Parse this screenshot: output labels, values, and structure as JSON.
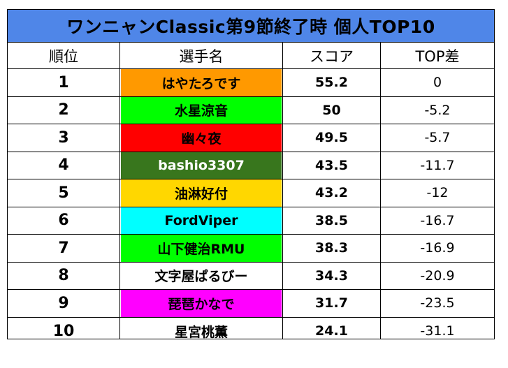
{
  "title": "ワンニャンClassic第9節終了時 個人TOP10",
  "headers": {
    "rank": "順位",
    "name": "選手名",
    "score": "スコア",
    "diff": "TOP差"
  },
  "rows": [
    {
      "rank": "1",
      "name": "はやたろです",
      "score": "55.2",
      "diff": "0",
      "color": "#ff9900",
      "text_color": "#000000"
    },
    {
      "rank": "2",
      "name": "水星涼音",
      "score": "50",
      "diff": "-5.2",
      "color": "#00ff00",
      "text_color": "#000000"
    },
    {
      "rank": "3",
      "name": "幽々夜",
      "score": "49.5",
      "diff": "-5.7",
      "color": "#ff0000",
      "text_color": "#000000"
    },
    {
      "rank": "4",
      "name": "bashio3307",
      "score": "43.5",
      "diff": "-11.7",
      "color": "#38761d",
      "text_color": "#ffffff"
    },
    {
      "rank": "5",
      "name": "油淋好付",
      "score": "43.2",
      "diff": "-12",
      "color": "#ffd700",
      "text_color": "#000000"
    },
    {
      "rank": "6",
      "name": "FordViper",
      "score": "38.5",
      "diff": "-16.7",
      "color": "#00ffff",
      "text_color": "#000000"
    },
    {
      "rank": "7",
      "name": "山下健治RMU",
      "score": "38.3",
      "diff": "-16.9",
      "color": "#00ff00",
      "text_color": "#000000"
    },
    {
      "rank": "8",
      "name": "文字屋ぱるびー",
      "score": "34.3",
      "diff": "-20.9",
      "color": "#ffffff",
      "text_color": "#000000"
    },
    {
      "rank": "9",
      "name": "琵琶かなで",
      "score": "31.7",
      "diff": "-23.5",
      "color": "#ff00ff",
      "text_color": "#000000"
    },
    {
      "rank": "10",
      "name": "星宮桃薫",
      "score": "24.1",
      "diff": "-31.1",
      "color": "#ffffff",
      "text_color": "#000000"
    }
  ],
  "colors": {
    "title_bg": "#4f86e8",
    "border": "#000000"
  }
}
